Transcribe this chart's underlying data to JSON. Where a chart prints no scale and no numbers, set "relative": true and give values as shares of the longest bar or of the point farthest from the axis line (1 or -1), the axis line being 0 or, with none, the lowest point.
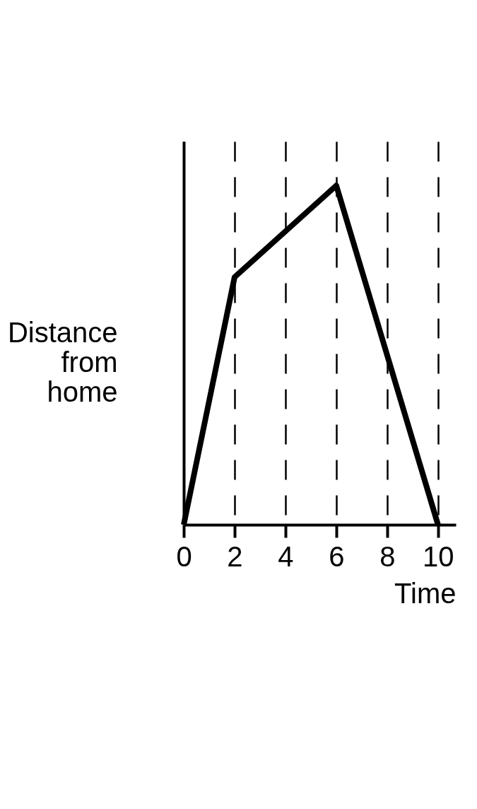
{
  "chart_data": {
    "type": "line",
    "xlabel": "Time",
    "ylabel": "Distance from home",
    "x": [
      0,
      2,
      6,
      10
    ],
    "values": [
      0,
      0.73,
      1,
      0
    ],
    "relative": true,
    "color": "#000000",
    "xlim": [
      0,
      10.7
    ],
    "xticks": [
      0,
      2,
      4,
      6,
      8,
      10
    ],
    "grid": "x"
  }
}
